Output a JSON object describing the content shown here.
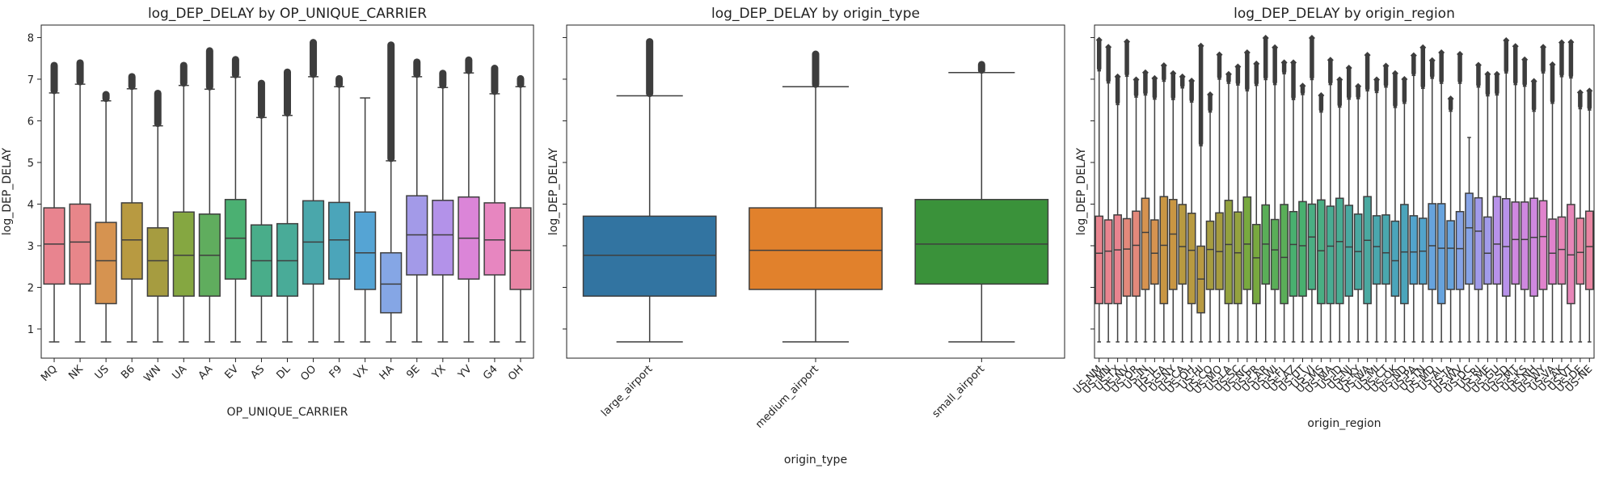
{
  "chart_data": [
    {
      "type": "box",
      "title": "log_DEP_DELAY by OP_UNIQUE_CARRIER",
      "xlabel": "OP_UNIQUE_CARRIER",
      "ylabel": "log_DEP_DELAY",
      "ylim": [
        0.3,
        8.3
      ],
      "yticks": [
        1,
        2,
        3,
        4,
        5,
        6,
        7,
        8
      ],
      "categories": [
        "MQ",
        "NK",
        "US",
        "B6",
        "WN",
        "UA",
        "AA",
        "EV",
        "AS",
        "DL",
        "OO",
        "F9",
        "VX",
        "HA",
        "9E",
        "YX",
        "YV",
        "G4",
        "OH"
      ],
      "colors": [
        "#e8848f",
        "#e8868a",
        "#d69350",
        "#b89a41",
        "#a69c40",
        "#85a741",
        "#60ad5e",
        "#4bb072",
        "#49ad8a",
        "#49ab98",
        "#4aa7ab",
        "#4ba5ba",
        "#55a4d4",
        "#85a6e5",
        "#a39ae8",
        "#b392e9",
        "#db85d8",
        "#e786c0",
        "#e985a5"
      ],
      "whislo": [
        0.69,
        0.69,
        0.69,
        0.69,
        0.69,
        0.69,
        0.69,
        0.69,
        0.69,
        0.69,
        0.69,
        0.69,
        0.69,
        0.69,
        0.69,
        0.69,
        0.69,
        0.69,
        0.69
      ],
      "q1": [
        2.08,
        2.08,
        1.61,
        2.2,
        1.79,
        1.79,
        1.79,
        2.2,
        1.79,
        1.79,
        2.08,
        2.2,
        1.95,
        1.39,
        2.3,
        2.3,
        2.2,
        2.3,
        1.95
      ],
      "median": [
        3.04,
        3.09,
        2.64,
        3.14,
        2.64,
        2.77,
        2.77,
        3.18,
        2.64,
        2.64,
        3.09,
        3.14,
        2.83,
        2.08,
        3.26,
        3.26,
        3.18,
        3.14,
        2.89
      ],
      "q3": [
        3.91,
        4.0,
        3.56,
        4.03,
        3.43,
        3.81,
        3.76,
        4.11,
        3.5,
        3.53,
        4.08,
        4.04,
        3.81,
        2.83,
        4.2,
        4.09,
        4.17,
        4.03,
        3.91
      ],
      "whishi": [
        6.67,
        6.88,
        6.48,
        6.77,
        5.88,
        6.85,
        6.76,
        7.05,
        6.08,
        6.13,
        7.06,
        6.82,
        6.55,
        5.04,
        7.06,
        6.8,
        7.15,
        6.65,
        6.82
      ],
      "outmax": [
        7.33,
        7.39,
        6.63,
        7.06,
        6.66,
        7.33,
        7.68,
        7.47,
        6.9,
        7.17,
        7.88,
        7.01,
        6.55,
        7.82,
        7.41,
        7.14,
        7.46,
        7.26,
        7.01
      ]
    },
    {
      "type": "box",
      "title": "log_DEP_DELAY by origin_type",
      "xlabel": "origin_type",
      "ylabel": "log_DEP_DELAY",
      "ylim": [
        0.3,
        8.3
      ],
      "yticks": [
        1,
        2,
        3,
        4,
        5,
        6,
        7,
        8
      ],
      "categories": [
        "large_airport",
        "medium_airport",
        "small_airport"
      ],
      "colors": [
        "#3274a1",
        "#e1812c",
        "#3a923a"
      ],
      "whislo": [
        0.69,
        0.69,
        0.69
      ],
      "q1": [
        1.79,
        1.95,
        2.08
      ],
      "median": [
        2.77,
        2.89,
        3.04
      ],
      "q3": [
        3.71,
        3.91,
        4.11
      ],
      "whishi": [
        6.6,
        6.82,
        7.16
      ],
      "outmax": [
        7.9,
        7.6,
        7.35
      ]
    },
    {
      "type": "box",
      "title": "log_DEP_DELAY by origin_region",
      "xlabel": "origin_region",
      "ylabel": "log_DEP_DELAY",
      "ylim": [
        0.3,
        8.3
      ],
      "yticks": [
        1,
        2,
        3,
        4,
        5,
        6,
        7,
        8
      ],
      "categories": [
        "US-NM",
        "US-MN",
        "US-TX",
        "US-NV",
        "US-OR",
        "US-IN",
        "US-IL",
        "US-GA",
        "US-NY",
        "US-CA",
        "US-OH",
        "US-HI",
        "US-CO",
        "US-MO",
        "US-LA",
        "US-SC",
        "US-NC",
        "US-PR",
        "US-AR",
        "US-WI",
        "US-FL",
        "US-AZ",
        "US-UT",
        "US-VI",
        "US-MS",
        "US-MA",
        "US-ID",
        "US-NJ",
        "US-KY",
        "US-WA",
        "US-MI",
        "US-CT",
        "US-OK",
        "US-ND",
        "US-PA",
        "US-TN",
        "US-MD",
        "US-AL",
        "US-IA",
        "US-WV",
        "US-DC",
        "US-RI",
        "US-ME",
        "US-GU",
        "US-SD",
        "US-MT",
        "US-KS",
        "US-NH",
        "US-WY",
        "US-VA",
        "US-AK",
        "US-VT",
        "US-DE",
        "US-NE"
      ]
    }
  ]
}
